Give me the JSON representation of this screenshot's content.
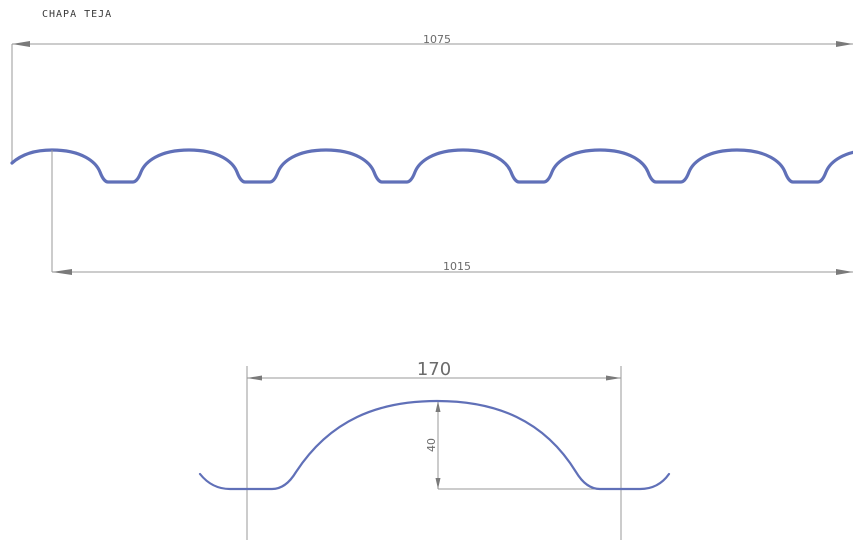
{
  "drawing": {
    "title": "CHAPA TEJA",
    "profile_color": "#6070b8",
    "dimension_color": "#9a9a9a",
    "dimensions": {
      "total_width": "1075",
      "useful_width": "1015",
      "wave_pitch": "170",
      "wave_height": "40"
    }
  }
}
